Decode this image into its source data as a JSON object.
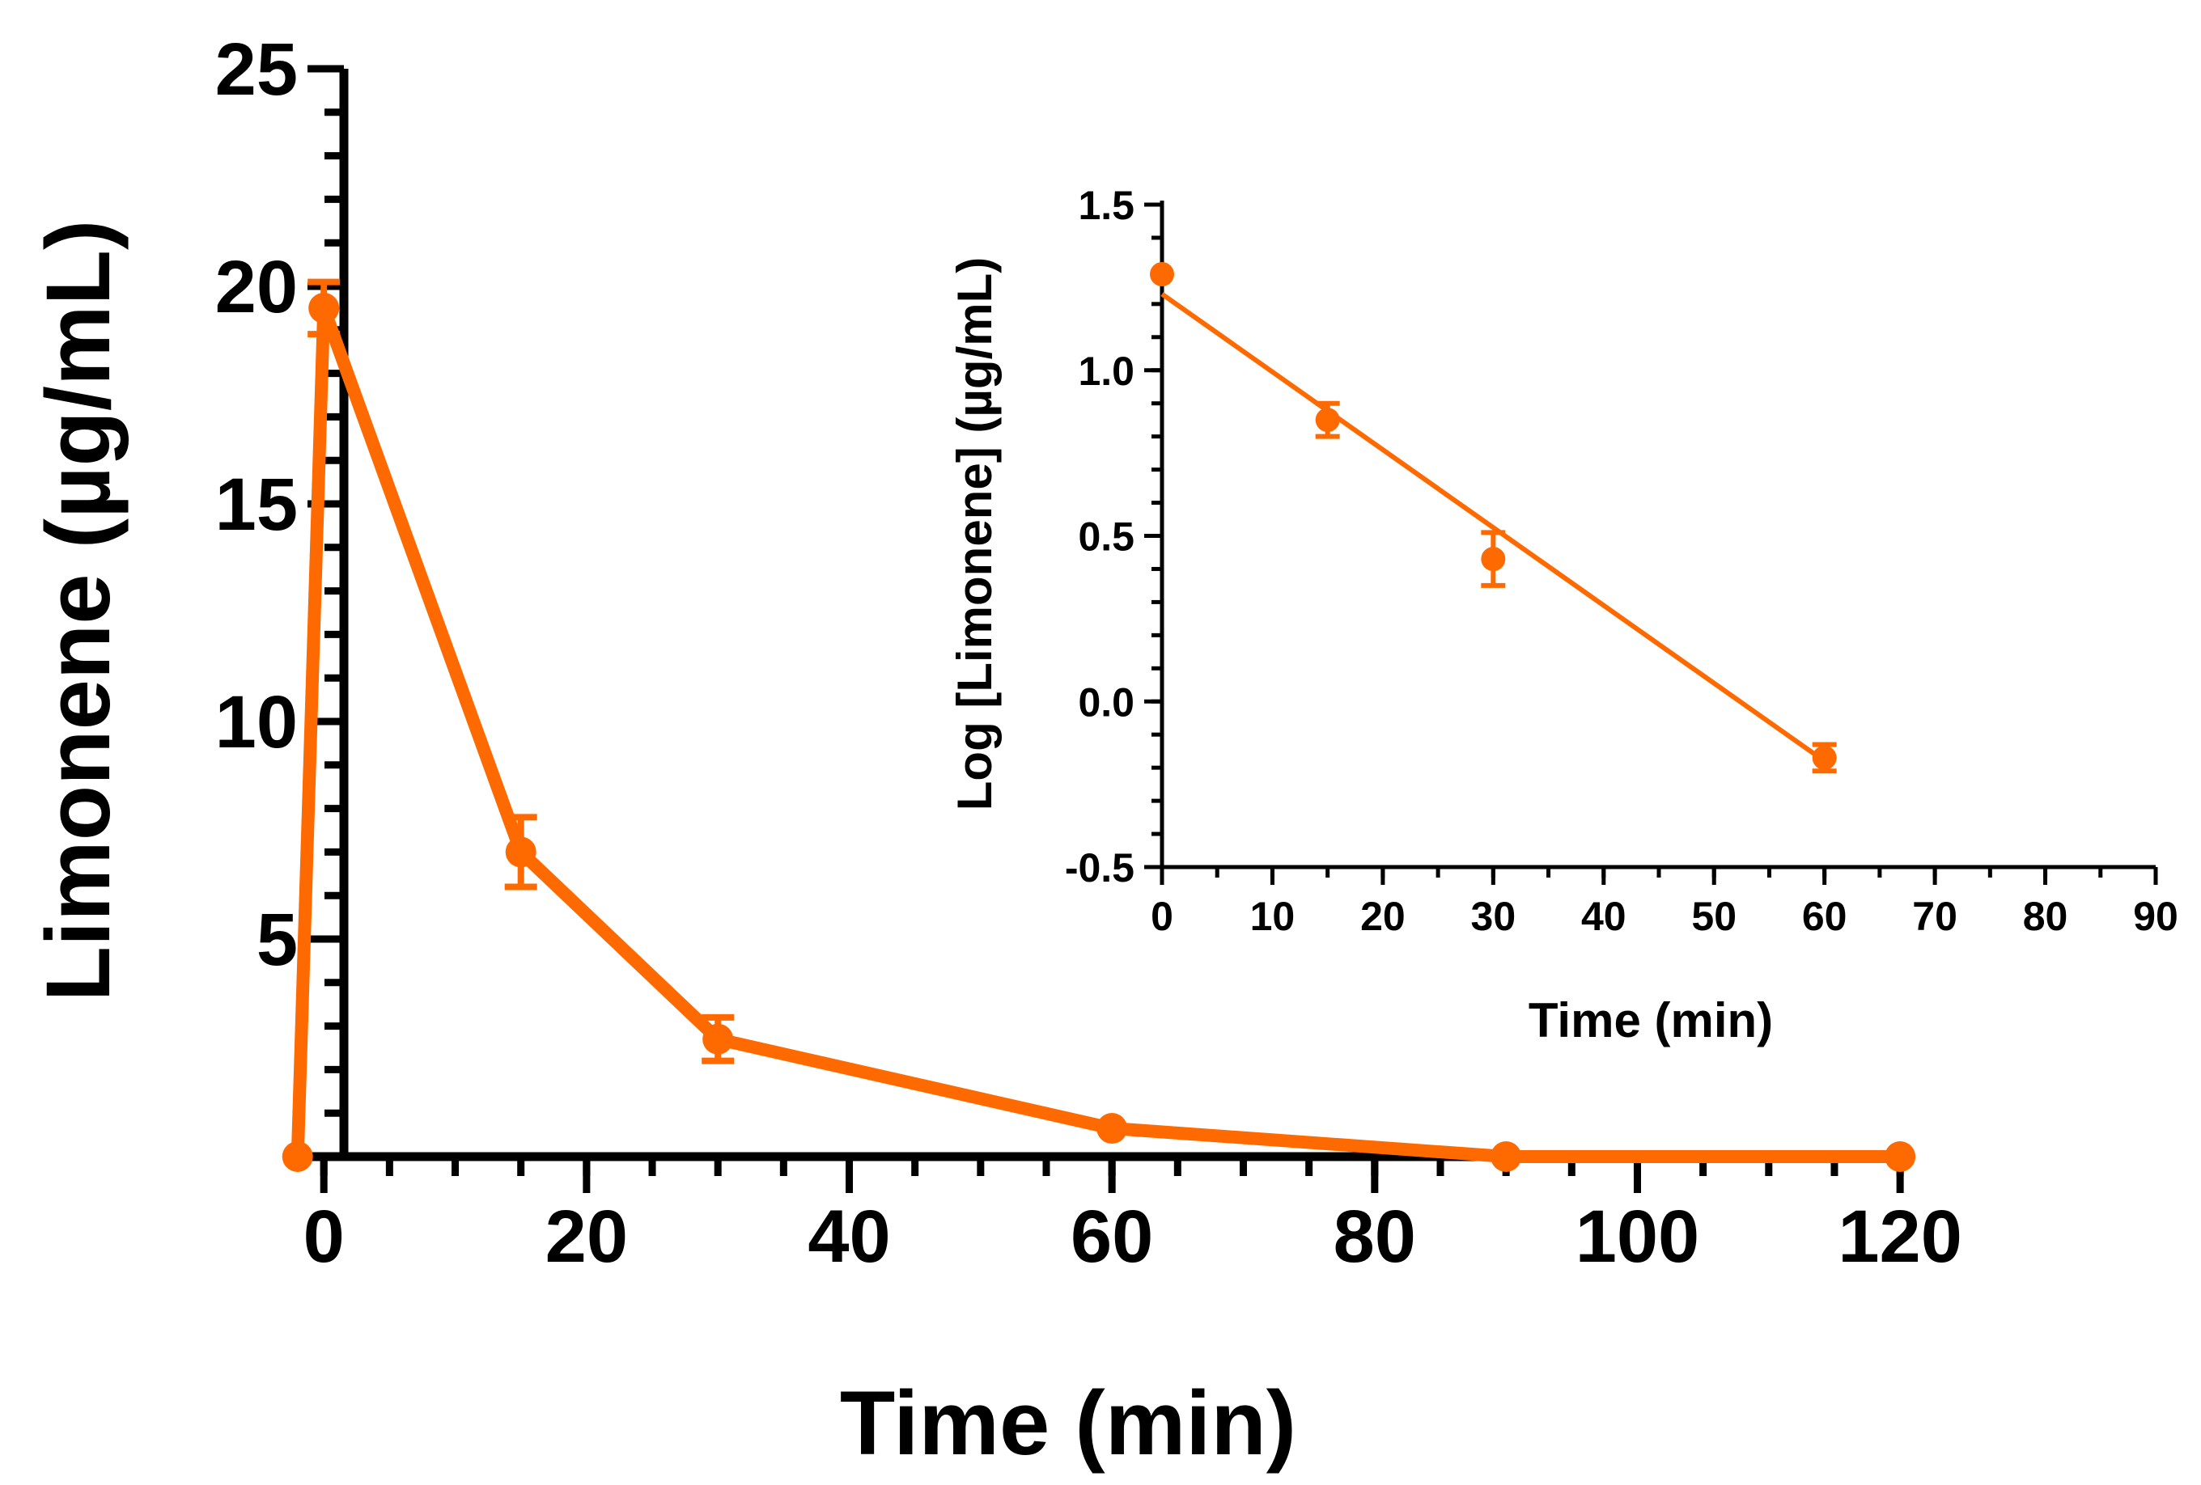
{
  "colors": {
    "series": "#FF6A00",
    "axis": "#000000",
    "background": "#FFFFFF"
  },
  "chart_data": [
    {
      "id": "main",
      "type": "line",
      "title": "",
      "xlabel": "Time (min)",
      "ylabel": "Limonene (µg/mL)",
      "xlim": [
        -3,
        122
      ],
      "ylim": [
        0,
        25
      ],
      "xticks": [
        0,
        20,
        40,
        60,
        80,
        100,
        120
      ],
      "xtick_labels": [
        "0",
        "20",
        "40",
        "60",
        "80",
        "100",
        "120"
      ],
      "yticks": [
        5,
        10,
        15,
        20,
        25
      ],
      "ytick_labels": [
        "5",
        "10",
        "15",
        "20",
        "25"
      ],
      "y_minor_step": 1,
      "x_minor_step": 5,
      "series": [
        {
          "name": "Limonene",
          "x": [
            -2,
            0,
            15,
            30,
            60,
            90,
            120
          ],
          "y": [
            0,
            19.5,
            7.0,
            2.7,
            0.65,
            0.0,
            0.0
          ],
          "err": [
            0,
            0.6,
            0.8,
            0.5,
            0,
            0,
            0
          ]
        }
      ]
    },
    {
      "id": "inset",
      "type": "scatter",
      "title": "",
      "xlabel": "Time (min)",
      "ylabel": "Log [Limonene] (µg/mL)",
      "xlim": [
        0,
        90
      ],
      "ylim": [
        -0.5,
        1.5
      ],
      "xticks": [
        0,
        10,
        20,
        30,
        40,
        50,
        60,
        70,
        80,
        90
      ],
      "xtick_labels": [
        "0",
        "10",
        "20",
        "30",
        "40",
        "50",
        "60",
        "70",
        "80",
        "90"
      ],
      "yticks": [
        -0.5,
        0.0,
        0.5,
        1.0,
        1.5
      ],
      "ytick_labels": [
        "-0.5",
        "0.0",
        "0.5",
        "1.0",
        "1.5"
      ],
      "y_minor_step": 0.1,
      "x_minor_step": 5,
      "series": [
        {
          "name": "Log Limonene",
          "x": [
            0,
            15,
            30,
            60
          ],
          "y": [
            1.29,
            0.85,
            0.43,
            -0.17
          ],
          "err": [
            0,
            0.05,
            0.08,
            0.04
          ]
        }
      ],
      "fit_line": {
        "x": [
          0,
          60
        ],
        "y": [
          1.23,
          -0.18
        ]
      }
    }
  ]
}
